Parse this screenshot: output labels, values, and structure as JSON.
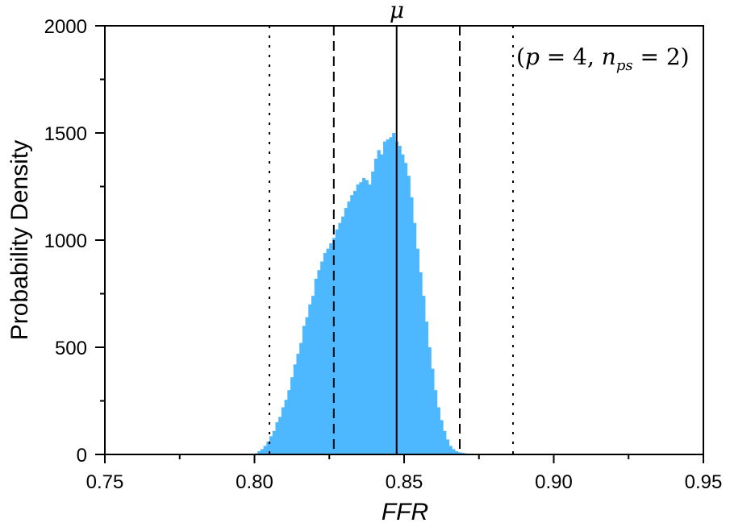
{
  "chart_data": {
    "type": "bar",
    "subtype": "histogram",
    "title": "",
    "xlabel": "FFR",
    "ylabel": "Probability Density",
    "xlim": [
      0.75,
      0.95
    ],
    "ylim": [
      0,
      2000
    ],
    "xticks": [
      "0.75",
      "0.80",
      "0.85",
      "0.90",
      "0.95"
    ],
    "yticks": [
      "0",
      "500",
      "1000",
      "1500",
      "2000"
    ],
    "x_minor_ticks": [
      0.775,
      0.825,
      0.875,
      0.925
    ],
    "y_minor_ticks": [
      250,
      750,
      1250,
      1750
    ],
    "grid": false,
    "bar_color": "#4db8ff",
    "annotation": "(p = 4, n_ps = 2)",
    "annotation_parts": {
      "open": "(",
      "p": "p",
      "eq1": " = 4, ",
      "n": "n",
      "sub": "ps",
      "eq2": " = 2",
      "close": ")"
    },
    "mu_label": "μ",
    "reference_lines": [
      {
        "name": "mean",
        "label": "μ",
        "x": 0.8475,
        "style": "solid"
      },
      {
        "name": "minus-1-sigma",
        "x": 0.8265,
        "style": "dashed"
      },
      {
        "name": "plus-1-sigma",
        "x": 0.8686,
        "style": "dashed"
      },
      {
        "name": "minus-2-sigma",
        "x": 0.805,
        "style": "dotted"
      },
      {
        "name": "plus-2-sigma",
        "x": 0.8864,
        "style": "dotted"
      }
    ],
    "bin_width": 0.001,
    "bins_start": 0.8,
    "values": [
      5,
      15,
      25,
      40,
      60,
      85,
      110,
      150,
      175,
      220,
      255,
      300,
      360,
      420,
      470,
      520,
      600,
      640,
      700,
      740,
      820,
      860,
      900,
      940,
      960,
      985,
      1010,
      1050,
      1080,
      1110,
      1150,
      1180,
      1210,
      1230,
      1260,
      1270,
      1290,
      1280,
      1260,
      1320,
      1380,
      1420,
      1400,
      1460,
      1470,
      1480,
      1500,
      1460,
      1440,
      1400,
      1360,
      1300,
      1200,
      1080,
      960,
      850,
      740,
      620,
      500,
      400,
      300,
      220,
      160,
      110,
      70,
      40,
      25,
      15,
      10,
      8,
      5,
      3,
      2,
      1,
      0,
      0,
      0,
      0,
      0,
      0,
      0,
      0,
      0,
      0,
      0,
      0,
      0,
      0,
      0,
      0
    ]
  }
}
